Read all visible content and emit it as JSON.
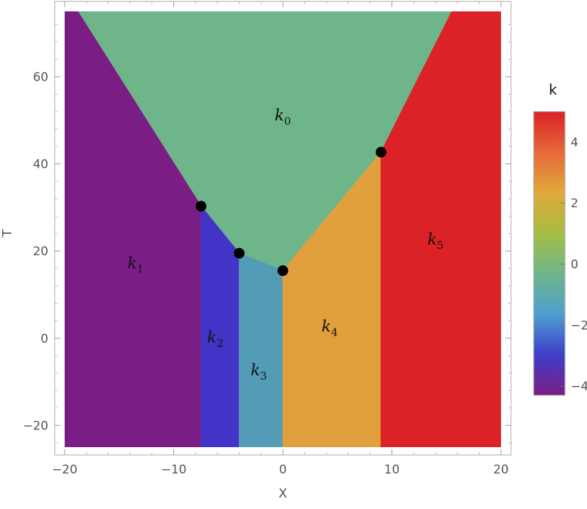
{
  "chart_data": {
    "type": "heatmap",
    "title": "",
    "xlabel": "X",
    "ylabel": "T",
    "xlim": [
      -20,
      20
    ],
    "ylim": [
      -25,
      75
    ],
    "x_ticks": [
      -20,
      -10,
      0,
      10,
      20
    ],
    "y_ticks": [
      -20,
      0,
      20,
      40,
      60
    ],
    "x_tick_labels": [
      "−20",
      "−10",
      "0",
      "10",
      "20"
    ],
    "y_tick_labels": [
      "−20",
      "0",
      "20",
      "40",
      "60"
    ],
    "regions": [
      {
        "name": "k",
        "sub": "0",
        "color": "#6eb58a",
        "label_at": [
          0,
          50
        ],
        "polygon": [
          [
            -18.8,
            75
          ],
          [
            15.5,
            75
          ],
          [
            9,
            42.7
          ],
          [
            0,
            15.5
          ],
          [
            -4,
            19.5
          ],
          [
            -7.5,
            30.3
          ]
        ]
      },
      {
        "name": "k",
        "sub": "1",
        "color": "#7a1d85",
        "label_at": [
          -13.5,
          16
        ],
        "polygon": [
          [
            -20,
            -25
          ],
          [
            -7.5,
            -25
          ],
          [
            -7.5,
            30.3
          ],
          [
            -18.8,
            75
          ],
          [
            -20,
            75
          ]
        ]
      },
      {
        "name": "k",
        "sub": "2",
        "color": "#4234c7",
        "label_at": [
          -6.2,
          -1
        ],
        "polygon": [
          [
            -7.5,
            -25
          ],
          [
            -4,
            -25
          ],
          [
            -4,
            19.5
          ],
          [
            -7.5,
            30.3
          ]
        ]
      },
      {
        "name": "k",
        "sub": "3",
        "color": "#539cb6",
        "label_at": [
          -2.2,
          -8.5
        ],
        "polygon": [
          [
            -4,
            -25
          ],
          [
            0,
            -25
          ],
          [
            0,
            15.5
          ],
          [
            -4,
            19.5
          ]
        ]
      },
      {
        "name": "k",
        "sub": "4",
        "color": "#e1a03e",
        "label_at": [
          4.3,
          1.5
        ],
        "polygon": [
          [
            0,
            -25
          ],
          [
            9,
            -25
          ],
          [
            9,
            42.7
          ],
          [
            0,
            15.5
          ]
        ]
      },
      {
        "name": "k",
        "sub": "5",
        "color": "#db2226",
        "label_at": [
          14,
          21.5
        ],
        "polygon": [
          [
            9,
            -25
          ],
          [
            20,
            -25
          ],
          [
            20,
            75
          ],
          [
            15.5,
            75
          ],
          [
            9,
            42.7
          ]
        ]
      }
    ],
    "points": [
      {
        "x": -7.5,
        "y": 30.3
      },
      {
        "x": -4,
        "y": 19.5
      },
      {
        "x": 0,
        "y": 15.5
      },
      {
        "x": 9,
        "y": 42.7
      }
    ],
    "colorbar": {
      "title": "k",
      "range": [
        -4.3,
        5
      ],
      "ticks": [
        -4,
        -2,
        0,
        2,
        4
      ],
      "tick_labels": [
        "−4",
        "−2",
        "0",
        "2",
        "4"
      ],
      "gradient": [
        "#7a1d85",
        "#3e3ec9",
        "#4f9fd0",
        "#6eb58a",
        "#a7bd45",
        "#e0a83a",
        "#e6683a",
        "#db2226"
      ]
    }
  }
}
